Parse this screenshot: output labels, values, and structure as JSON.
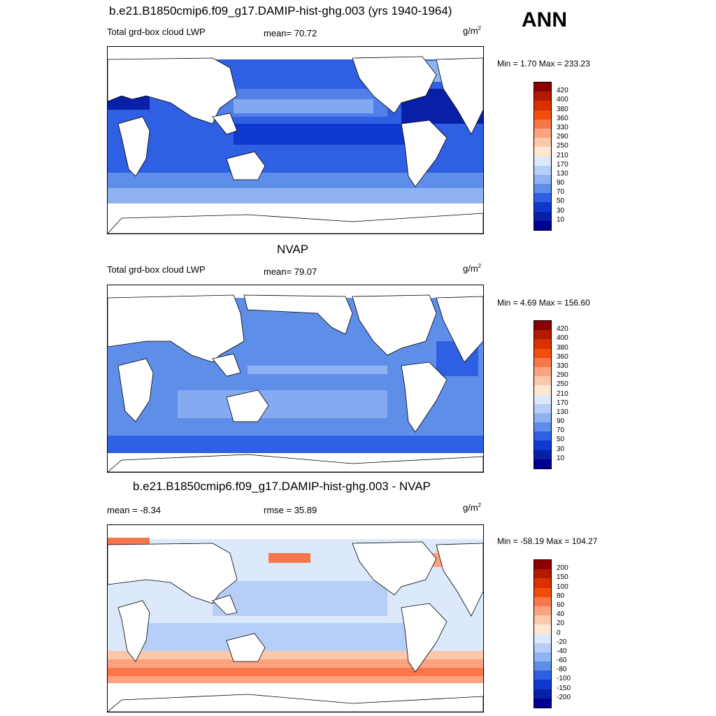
{
  "corner_label": "ANN",
  "panels": [
    {
      "title": "b.e21.B1850cmip6.f09_g17.DAMIP-hist-ghg.003 (yrs 1940-1964)",
      "left_label": "Total grd-box cloud LWP",
      "mid_label": "mean=  70.72",
      "unit_base": "g/m",
      "unit_exp": "2",
      "minmax": "Min =   1.70 Max = 233.23",
      "colorbar": {
        "levels": [
          "420",
          "400",
          "380",
          "360",
          "330",
          "290",
          "250",
          "210",
          "170",
          "130",
          "90",
          "70",
          "50",
          "30",
          "10"
        ],
        "colors": [
          "#8b0000",
          "#b31a00",
          "#d93200",
          "#f24d0d",
          "#f7774a",
          "#fca27f",
          "#fcc8aa",
          "#fde6d2",
          "#dbe9fb",
          "#b7cff8",
          "#8fb2f3",
          "#5f8ee9",
          "#2f5fe3",
          "#0f38cf",
          "#0820a8",
          "#00008f"
        ]
      }
    },
    {
      "title": "NVAP",
      "left_label": "Total grd-box cloud LWP",
      "mid_label": "mean=  79.07",
      "unit_base": "g/m",
      "unit_exp": "2",
      "minmax": "Min =   4.69 Max = 156.60",
      "colorbar": {
        "levels": [
          "420",
          "400",
          "380",
          "360",
          "330",
          "290",
          "250",
          "210",
          "170",
          "130",
          "90",
          "70",
          "50",
          "30",
          "10"
        ],
        "colors": [
          "#8b0000",
          "#b31a00",
          "#d93200",
          "#f24d0d",
          "#f7774a",
          "#fca27f",
          "#fcc8aa",
          "#fde6d2",
          "#dbe9fb",
          "#b7cff8",
          "#8fb2f3",
          "#5f8ee9",
          "#2f5fe3",
          "#0f38cf",
          "#0820a8",
          "#00008f"
        ]
      }
    },
    {
      "title": "b.e21.B1850cmip6.f09_g17.DAMIP-hist-ghg.003 - NVAP",
      "left_label": "mean =  -8.34",
      "mid_label": "rmse =  35.89",
      "unit_base": "g/m",
      "unit_exp": "2",
      "minmax": "Min = -58.19 Max = 104.27",
      "colorbar": {
        "levels": [
          "200",
          "150",
          "100",
          "80",
          "60",
          "40",
          "20",
          "0",
          "-20",
          "-40",
          "-60",
          "-80",
          "-100",
          "-150",
          "-200"
        ],
        "colors": [
          "#8b0000",
          "#b31a00",
          "#d93200",
          "#f24d0d",
          "#f7774a",
          "#fca27f",
          "#fcc8aa",
          "#fde6d2",
          "#dbe9fb",
          "#b7cff8",
          "#8fb2f3",
          "#5f8ee9",
          "#2f5fe3",
          "#0f38cf",
          "#0820a8",
          "#00008f"
        ]
      }
    }
  ]
}
